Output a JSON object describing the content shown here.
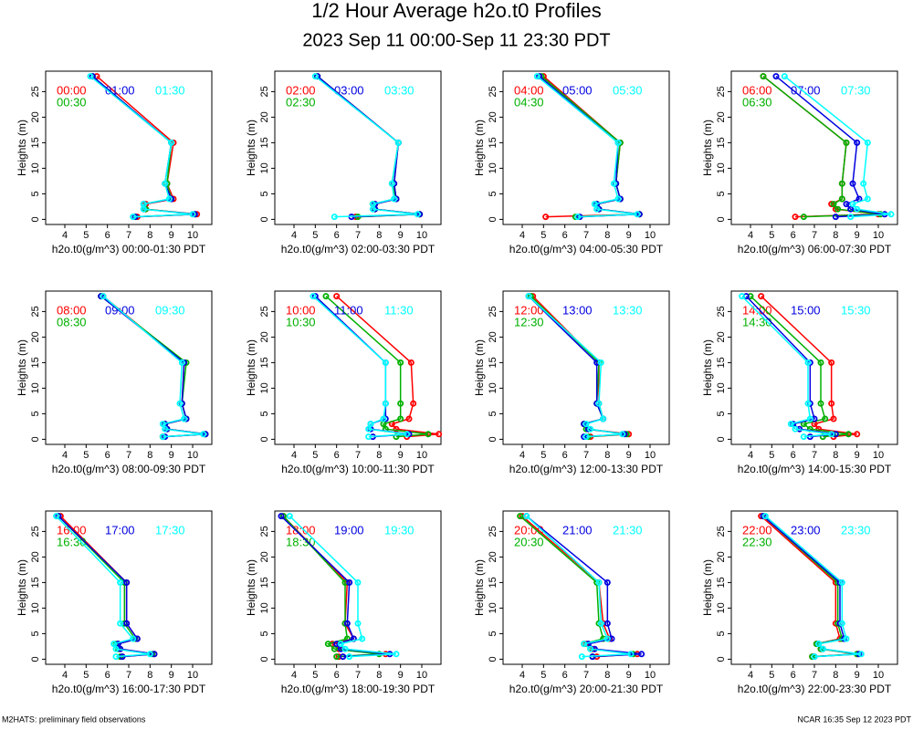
{
  "title": "1/2 Hour Average h2o.t0 Profiles",
  "subtitle": "2023 Sep 11 00:00-Sep 11 23:30 PDT",
  "footer_left": "M2HATS: preliminary field observations",
  "footer_right": "NCAR 16:35 Sep 12 2023 PDT",
  "chart_data": [
    {
      "type": "line",
      "xlabel": "h2o.t0(g/m^3) 00:00-01:30 PDT",
      "ylabel": "Heights (m)",
      "xlim": [
        3.1,
        10.9
      ],
      "ylim": [
        -1,
        29
      ],
      "xticks": [
        4,
        5,
        6,
        7,
        8,
        9,
        10
      ],
      "yticks": [
        0,
        5,
        10,
        15,
        20,
        25
      ],
      "y": [
        0.5,
        1,
        2,
        3,
        4,
        7,
        15,
        28
      ],
      "series": [
        {
          "name": "00:00",
          "color": "#ff0000",
          "values": [
            7.4,
            10.2,
            7.8,
            7.8,
            9.1,
            8.8,
            9.1,
            5.5
          ]
        },
        {
          "name": "00:30",
          "color": "#00b000",
          "values": [
            7.3,
            10.1,
            7.8,
            7.7,
            9.0,
            8.8,
            9.0,
            5.3
          ]
        },
        {
          "name": "01:00",
          "color": "#0000e0",
          "values": [
            7.3,
            10.1,
            7.7,
            7.7,
            9.0,
            8.7,
            9.0,
            5.3
          ]
        },
        {
          "name": "01:30",
          "color": "#00ffff",
          "values": [
            7.2,
            10.0,
            7.7,
            7.7,
            8.9,
            8.7,
            9.0,
            5.2
          ]
        }
      ]
    },
    {
      "type": "line",
      "xlabel": "h2o.t0(g/m^3) 02:00-03:30 PDT",
      "ylabel": "Heights (m)",
      "xlim": [
        3.1,
        10.9
      ],
      "ylim": [
        -1,
        29
      ],
      "xticks": [
        4,
        5,
        6,
        7,
        8,
        9,
        10
      ],
      "yticks": [
        0,
        5,
        10,
        15,
        20,
        25
      ],
      "y": [
        0.5,
        1,
        2,
        3,
        4,
        7,
        15,
        28
      ],
      "series": [
        {
          "name": "02:00",
          "color": "#ff0000",
          "values": [
            6.9,
            9.9,
            7.8,
            7.8,
            8.8,
            8.7,
            8.9,
            5.1
          ]
        },
        {
          "name": "02:30",
          "color": "#00b000",
          "values": [
            7.0,
            9.9,
            7.8,
            7.7,
            8.8,
            8.6,
            8.9,
            5.1
          ]
        },
        {
          "name": "03:00",
          "color": "#0000e0",
          "values": [
            6.7,
            9.9,
            7.8,
            7.8,
            8.8,
            8.7,
            8.9,
            5.1
          ]
        },
        {
          "name": "03:30",
          "color": "#00ffff",
          "values": [
            5.9,
            9.8,
            7.7,
            7.7,
            8.7,
            8.6,
            8.9,
            5.0
          ]
        }
      ]
    },
    {
      "type": "line",
      "xlabel": "h2o.t0(g/m^3) 04:00-05:30 PDT",
      "ylabel": "Heights (m)",
      "xlim": [
        3.1,
        10.9
      ],
      "ylim": [
        -1,
        29
      ],
      "xticks": [
        4,
        5,
        6,
        7,
        8,
        9,
        10
      ],
      "yticks": [
        0,
        5,
        10,
        15,
        20,
        25
      ],
      "y": [
        0.5,
        1,
        2,
        3,
        4,
        7,
        15,
        28
      ],
      "series": [
        {
          "name": "04:00",
          "color": "#ff0000",
          "values": [
            5.1,
            9.5,
            7.6,
            7.5,
            8.6,
            8.4,
            8.6,
            5.0
          ]
        },
        {
          "name": "04:30",
          "color": "#00b000",
          "values": [
            6.5,
            9.5,
            7.6,
            7.5,
            8.6,
            8.4,
            8.6,
            4.9
          ]
        },
        {
          "name": "05:00",
          "color": "#0000e0",
          "values": [
            6.7,
            9.5,
            7.6,
            7.5,
            8.6,
            8.4,
            8.5,
            4.8
          ]
        },
        {
          "name": "05:30",
          "color": "#00ffff",
          "values": [
            6.6,
            9.4,
            7.5,
            7.4,
            8.5,
            8.3,
            8.5,
            4.7
          ]
        }
      ]
    },
    {
      "type": "line",
      "xlabel": "h2o.t0(g/m^3) 06:00-07:30 PDT",
      "ylabel": "Heights (m)",
      "xlim": [
        3.1,
        10.9
      ],
      "ylim": [
        -1,
        29
      ],
      "xticks": [
        4,
        5,
        6,
        7,
        8,
        9,
        10
      ],
      "yticks": [
        0,
        5,
        10,
        15,
        20,
        25
      ],
      "y": [
        0.5,
        1,
        2,
        3,
        4,
        7,
        15,
        28
      ],
      "series": [
        {
          "name": "06:00",
          "color": "#ff0000",
          "values": [
            6.1,
            10.0,
            8.0,
            7.8,
            8.3,
            8.3,
            8.5,
            4.6
          ]
        },
        {
          "name": "06:30",
          "color": "#00b000",
          "values": [
            6.5,
            10.1,
            8.1,
            7.9,
            8.3,
            8.3,
            8.5,
            4.6
          ]
        },
        {
          "name": "07:00",
          "color": "#0000e0",
          "values": [
            8.0,
            10.3,
            8.7,
            8.5,
            9.1,
            8.8,
            9.0,
            5.2
          ]
        },
        {
          "name": "07:30",
          "color": "#00ffff",
          "values": [
            8.7,
            10.6,
            9.0,
            8.8,
            9.5,
            9.3,
            9.5,
            5.6
          ]
        }
      ]
    },
    {
      "type": "line",
      "xlabel": "h2o.t0(g/m^3) 08:00-09:30 PDT",
      "ylabel": "Heights (m)",
      "xlim": [
        3.1,
        10.9
      ],
      "ylim": [
        -1,
        29
      ],
      "xticks": [
        4,
        5,
        6,
        7,
        8,
        9,
        10
      ],
      "yticks": [
        0,
        5,
        10,
        15,
        20,
        25
      ],
      "y": [
        0.5,
        1,
        2,
        3,
        4,
        7,
        15,
        28
      ],
      "series": [
        {
          "name": "08:00",
          "color": "#ff0000",
          "values": [
            8.6,
            10.6,
            8.8,
            8.7,
            9.7,
            9.5,
            9.6,
            5.8
          ]
        },
        {
          "name": "08:30",
          "color": "#00b000",
          "values": [
            8.6,
            10.6,
            8.8,
            8.7,
            9.7,
            9.5,
            9.7,
            5.7
          ]
        },
        {
          "name": "09:00",
          "color": "#0000e0",
          "values": [
            8.7,
            10.6,
            8.8,
            8.7,
            9.7,
            9.5,
            9.6,
            5.7
          ]
        },
        {
          "name": "09:30",
          "color": "#00ffff",
          "values": [
            8.6,
            10.5,
            8.7,
            8.6,
            9.6,
            9.4,
            9.5,
            5.8
          ]
        }
      ]
    },
    {
      "type": "line",
      "xlabel": "h2o.t0(g/m^3) 10:00-11:30 PDT",
      "ylabel": "Heights (m)",
      "xlim": [
        3.1,
        10.9
      ],
      "ylim": [
        -1,
        29
      ],
      "xticks": [
        4,
        5,
        6,
        7,
        8,
        9,
        10
      ],
      "yticks": [
        0,
        5,
        10,
        15,
        20,
        25
      ],
      "y": [
        0.5,
        1,
        2,
        3,
        4,
        7,
        15,
        28
      ],
      "series": [
        {
          "name": "10:00",
          "color": "#ff0000",
          "values": [
            9.3,
            10.8,
            8.8,
            8.6,
            9.4,
            9.6,
            9.5,
            6.0
          ]
        },
        {
          "name": "10:30",
          "color": "#00b000",
          "values": [
            8.8,
            10.3,
            8.3,
            8.2,
            9.0,
            9.0,
            9.0,
            5.5
          ]
        },
        {
          "name": "11:00",
          "color": "#0000e0",
          "values": [
            7.7,
            9.4,
            7.6,
            7.6,
            8.3,
            8.3,
            8.3,
            5.0
          ]
        },
        {
          "name": "11:30",
          "color": "#00ffff",
          "values": [
            7.5,
            9.3,
            7.5,
            7.6,
            8.2,
            8.3,
            8.3,
            4.9
          ]
        }
      ]
    },
    {
      "type": "line",
      "xlabel": "h2o.t0(g/m^3) 12:00-13:30 PDT",
      "ylabel": "Heights (m)",
      "xlim": [
        3.1,
        10.9
      ],
      "ylim": [
        -1,
        29
      ],
      "xticks": [
        4,
        5,
        6,
        7,
        8,
        9,
        10
      ],
      "yticks": [
        0,
        5,
        10,
        15,
        20,
        25
      ],
      "y": [
        0.5,
        1,
        2,
        3,
        4,
        7,
        15,
        28
      ],
      "series": [
        {
          "name": "12:00",
          "color": "#ff0000",
          "values": [
            7.2,
            9.0,
            7.1,
            6.9,
            7.8,
            7.6,
            7.6,
            4.5
          ]
        },
        {
          "name": "12:30",
          "color": "#00b000",
          "values": [
            7.1,
            8.9,
            7.0,
            6.9,
            7.8,
            7.5,
            7.6,
            4.4
          ]
        },
        {
          "name": "13:00",
          "color": "#0000e0",
          "values": [
            6.9,
            8.8,
            7.1,
            6.9,
            7.8,
            7.5,
            7.5,
            4.3
          ]
        },
        {
          "name": "13:30",
          "color": "#00ffff",
          "values": [
            7.0,
            8.7,
            7.2,
            7.0,
            7.8,
            7.6,
            7.7,
            4.3
          ]
        }
      ]
    },
    {
      "type": "line",
      "xlabel": "h2o.t0(g/m^3) 14:00-15:30 PDT",
      "ylabel": "Heights (m)",
      "xlim": [
        3.1,
        10.9
      ],
      "ylim": [
        -1,
        29
      ],
      "xticks": [
        4,
        5,
        6,
        7,
        8,
        9,
        10
      ],
      "yticks": [
        0,
        5,
        10,
        15,
        20,
        25
      ],
      "y": [
        0.5,
        1,
        2,
        3,
        4,
        7,
        15,
        28
      ],
      "series": [
        {
          "name": "14:00",
          "color": "#ff0000",
          "values": [
            7.9,
            9.0,
            7.2,
            7.0,
            7.9,
            7.8,
            7.8,
            4.5
          ]
        },
        {
          "name": "14:30",
          "color": "#00b000",
          "values": [
            7.4,
            8.6,
            6.8,
            6.5,
            7.5,
            7.3,
            7.3,
            4.0
          ]
        },
        {
          "name": "15:00",
          "color": "#0000e0",
          "values": [
            6.8,
            8.0,
            6.3,
            6.0,
            7.0,
            6.8,
            6.8,
            3.8
          ]
        },
        {
          "name": "15:30",
          "color": "#00ffff",
          "values": [
            6.5,
            7.8,
            6.1,
            5.9,
            6.8,
            6.7,
            6.7,
            3.6
          ]
        }
      ]
    },
    {
      "type": "line",
      "xlabel": "h2o.t0(g/m^3) 16:00-17:30 PDT",
      "ylabel": "Heights (m)",
      "xlim": [
        3.1,
        10.9
      ],
      "ylim": [
        -1,
        29
      ],
      "xticks": [
        4,
        5,
        6,
        7,
        8,
        9,
        10
      ],
      "yticks": [
        0,
        5,
        10,
        15,
        20,
        25
      ],
      "y": [
        0.5,
        1,
        2,
        3,
        4,
        7,
        15,
        28
      ],
      "series": [
        {
          "name": "16:00",
          "color": "#ff0000",
          "values": [
            6.7,
            8.2,
            6.6,
            6.5,
            7.4,
            6.9,
            6.9,
            3.8
          ]
        },
        {
          "name": "16:30",
          "color": "#00b000",
          "values": [
            6.6,
            8.1,
            6.5,
            6.4,
            7.3,
            6.8,
            6.8,
            3.7
          ]
        },
        {
          "name": "17:00",
          "color": "#0000e0",
          "values": [
            6.7,
            8.2,
            6.6,
            6.5,
            7.4,
            6.9,
            6.9,
            3.7
          ]
        },
        {
          "name": "17:30",
          "color": "#00ffff",
          "values": [
            6.4,
            8.0,
            6.4,
            6.3,
            7.2,
            6.6,
            6.6,
            3.6
          ]
        }
      ]
    },
    {
      "type": "line",
      "xlabel": "h2o.t0(g/m^3) 18:00-19:30 PDT",
      "ylabel": "Heights (m)",
      "xlim": [
        3.1,
        10.9
      ],
      "ylim": [
        -1,
        29
      ],
      "xticks": [
        4,
        5,
        6,
        7,
        8,
        9,
        10
      ],
      "yticks": [
        0,
        5,
        10,
        15,
        20,
        25
      ],
      "y": [
        0.5,
        1,
        2,
        3,
        4,
        7,
        15,
        28
      ],
      "series": [
        {
          "name": "18:00",
          "color": "#ff0000",
          "values": [
            6.1,
            8.3,
            6.1,
            5.8,
            6.8,
            6.4,
            6.5,
            3.5
          ]
        },
        {
          "name": "18:30",
          "color": "#00b000",
          "values": [
            6.0,
            8.0,
            5.9,
            5.6,
            6.5,
            6.4,
            6.4,
            3.5
          ]
        },
        {
          "name": "19:00",
          "color": "#0000e0",
          "values": [
            6.3,
            8.5,
            6.2,
            6.0,
            6.8,
            6.5,
            6.6,
            3.4
          ]
        },
        {
          "name": "19:30",
          "color": "#00ffff",
          "values": [
            6.6,
            8.8,
            6.4,
            6.2,
            7.2,
            7.0,
            7.0,
            3.8
          ]
        }
      ]
    },
    {
      "type": "line",
      "xlabel": "h2o.t0(g/m^3) 20:00-21:30 PDT",
      "ylabel": "Heights (m)",
      "xlim": [
        3.1,
        10.9
      ],
      "ylim": [
        -1,
        29
      ],
      "xticks": [
        4,
        5,
        6,
        7,
        8,
        9,
        10
      ],
      "yticks": [
        0,
        5,
        10,
        15,
        20,
        25
      ],
      "y": [
        0.5,
        1,
        2,
        3,
        4,
        7,
        15,
        28
      ],
      "series": [
        {
          "name": "20:00",
          "color": "#ff0000",
          "values": [
            7.5,
            9.4,
            7.3,
            7.0,
            8.1,
            7.8,
            7.6,
            4.0
          ]
        },
        {
          "name": "20:30",
          "color": "#00b000",
          "values": [
            7.3,
            9.2,
            7.2,
            6.9,
            7.8,
            7.6,
            7.5,
            3.9
          ]
        },
        {
          "name": "21:00",
          "color": "#0000e0",
          "values": [
            7.3,
            9.6,
            7.4,
            7.1,
            8.2,
            8.0,
            8.0,
            4.2
          ]
        },
        {
          "name": "21:30",
          "color": "#00ffff",
          "values": [
            6.8,
            9.1,
            7.2,
            6.9,
            8.0,
            7.7,
            7.6,
            4.2
          ]
        }
      ]
    },
    {
      "type": "line",
      "xlabel": "h2o.t0(g/m^3) 22:00-23:30 PDT",
      "ylabel": "Heights (m)",
      "xlim": [
        3.1,
        10.9
      ],
      "ylim": [
        -1,
        29
      ],
      "xticks": [
        4,
        5,
        6,
        7,
        8,
        9,
        10
      ],
      "yticks": [
        0,
        5,
        10,
        15,
        20,
        25
      ],
      "y": [
        0.5,
        1,
        2,
        3,
        4,
        7,
        15,
        28
      ],
      "series": [
        {
          "name": "22:00",
          "color": "#ff0000",
          "values": [
            6.9,
            9.0,
            7.3,
            7.1,
            8.2,
            8.0,
            8.0,
            4.5
          ]
        },
        {
          "name": "22:30",
          "color": "#00b000",
          "values": [
            6.9,
            9.0,
            7.3,
            7.1,
            8.3,
            8.1,
            8.1,
            4.6
          ]
        },
        {
          "name": "23:00",
          "color": "#0000e0",
          "values": [
            7.0,
            9.1,
            7.4,
            7.2,
            8.4,
            8.2,
            8.2,
            4.6
          ]
        },
        {
          "name": "23:30",
          "color": "#00ffff",
          "values": [
            7.0,
            9.2,
            7.4,
            7.2,
            8.5,
            8.3,
            8.3,
            4.7
          ]
        }
      ]
    }
  ]
}
